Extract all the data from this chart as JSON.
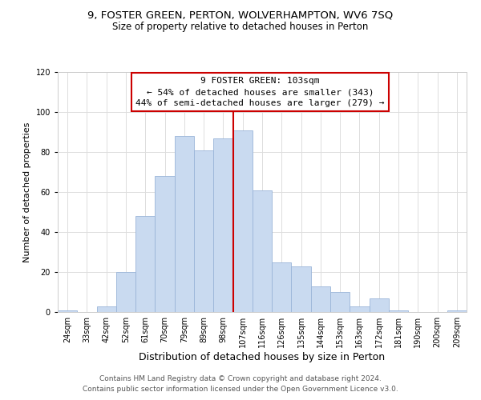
{
  "title": "9, FOSTER GREEN, PERTON, WOLVERHAMPTON, WV6 7SQ",
  "subtitle": "Size of property relative to detached houses in Perton",
  "xlabel": "Distribution of detached houses by size in Perton",
  "ylabel": "Number of detached properties",
  "bar_labels": [
    "24sqm",
    "33sqm",
    "42sqm",
    "52sqm",
    "61sqm",
    "70sqm",
    "79sqm",
    "89sqm",
    "98sqm",
    "107sqm",
    "116sqm",
    "126sqm",
    "135sqm",
    "144sqm",
    "153sqm",
    "163sqm",
    "172sqm",
    "181sqm",
    "190sqm",
    "200sqm",
    "209sqm"
  ],
  "bar_values": [
    1,
    0,
    3,
    20,
    48,
    68,
    88,
    81,
    87,
    91,
    61,
    25,
    23,
    13,
    10,
    3,
    7,
    1,
    0,
    0,
    1
  ],
  "bar_color": "#c9daf0",
  "bar_edge_color": "#9ab5d8",
  "vline_color": "#cc0000",
  "ylim": [
    0,
    120
  ],
  "yticks": [
    0,
    20,
    40,
    60,
    80,
    100,
    120
  ],
  "annotation_title": "9 FOSTER GREEN: 103sqm",
  "annotation_line1": "← 54% of detached houses are smaller (343)",
  "annotation_line2": "44% of semi-detached houses are larger (279) →",
  "annotation_box_color": "#ffffff",
  "annotation_box_edge": "#cc0000",
  "footer1": "Contains HM Land Registry data © Crown copyright and database right 2024.",
  "footer2": "Contains public sector information licensed under the Open Government Licence v3.0.",
  "background_color": "#ffffff",
  "grid_color": "#dddddd",
  "title_fontsize": 9.5,
  "subtitle_fontsize": 8.5,
  "xlabel_fontsize": 9,
  "ylabel_fontsize": 8,
  "tick_fontsize": 7,
  "annotation_fontsize": 8,
  "footer_fontsize": 6.5
}
